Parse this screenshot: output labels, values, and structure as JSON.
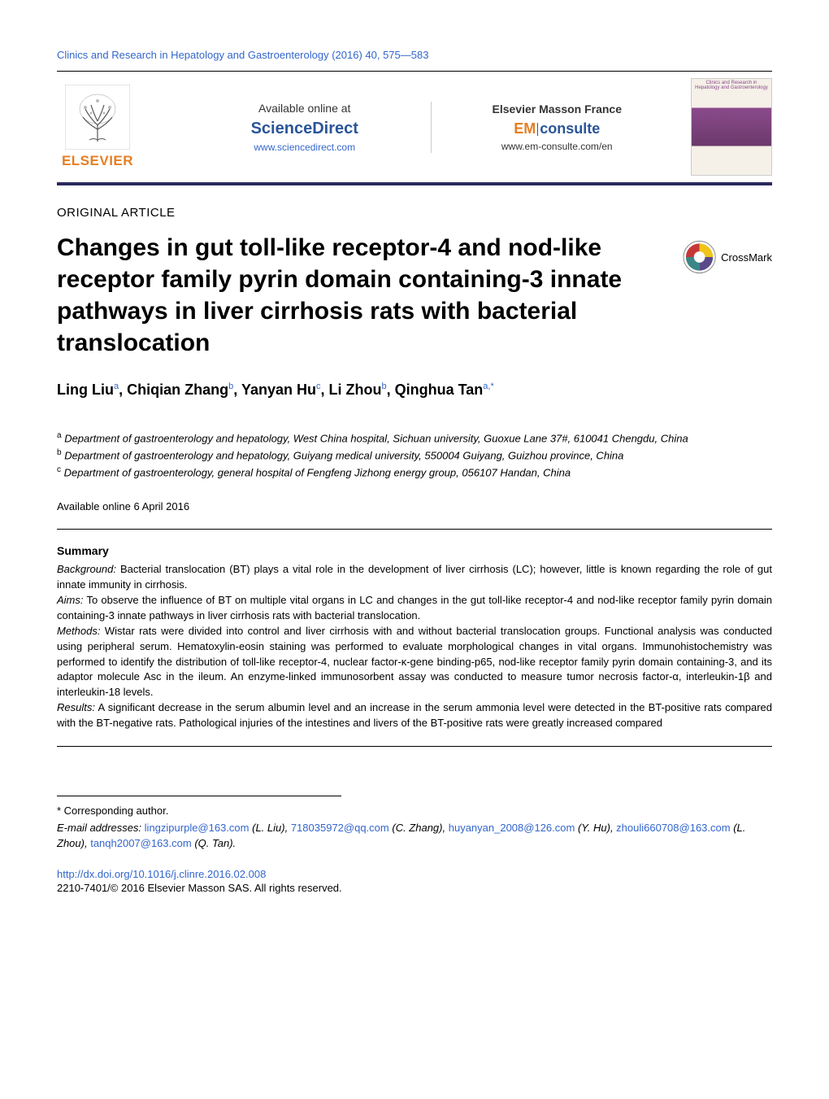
{
  "journal_header": "Clinics and Research in Hepatology and Gastroenterology (2016) 40, 575—583",
  "publisher": {
    "name": "ELSEVIER",
    "color": "#e67e22"
  },
  "availability": {
    "text": "Available online at",
    "platform": "ScienceDirect",
    "platform_color": "#2a5599",
    "url": "www.sciencedirect.com"
  },
  "masson": {
    "title": "Elsevier Masson France",
    "em": "EM",
    "consulte": "consulte",
    "url": "www.em-consulte.com/en"
  },
  "cover_title": "Clinics and Research in Hepatology and Gastroenterology",
  "article_type": "ORIGINAL ARTICLE",
  "article_title": "Changes in gut toll-like receptor-4 and nod-like receptor family pyrin domain containing-3 innate pathways in liver cirrhosis rats with bacterial translocation",
  "crossmark_label": "CrossMark",
  "authors": [
    {
      "name": "Ling Liu",
      "aff": "a"
    },
    {
      "name": "Chiqian Zhang",
      "aff": "b"
    },
    {
      "name": "Yanyan Hu",
      "aff": "c"
    },
    {
      "name": "Li Zhou",
      "aff": "b"
    },
    {
      "name": "Qinghua Tan",
      "aff": "a,*"
    }
  ],
  "affiliations": [
    {
      "sup": "a",
      "text": "Department of gastroenterology and hepatology, West China hospital, Sichuan university, Guoxue Lane 37#, 610041 Chengdu, China"
    },
    {
      "sup": "b",
      "text": "Department of gastroenterology and hepatology, Guiyang medical university, 550004 Guiyang, Guizhou province, China"
    },
    {
      "sup": "c",
      "text": "Department of gastroenterology, general hospital of Fengfeng Jizhong energy group, 056107 Handan, China"
    }
  ],
  "online_date": "Available online 6 April 2016",
  "summary_heading": "Summary",
  "abstract": {
    "background_label": "Background:",
    "background": " Bacterial translocation (BT) plays a vital role in the development of liver cirrhosis (LC); however, little is known regarding the role of gut innate immunity in cirrhosis.",
    "aims_label": "Aims:",
    "aims": " To observe the influence of BT on multiple vital organs in LC and changes in the gut toll-like receptor-4 and nod-like receptor family pyrin domain containing-3 innate pathways in liver cirrhosis rats with bacterial translocation.",
    "methods_label": "Methods:",
    "methods": " Wistar rats were divided into control and liver cirrhosis with and without bacterial translocation groups. Functional analysis was conducted using peripheral serum. Hematoxylin-eosin staining was performed to evaluate morphological changes in vital organs. Immunohistochemistry was performed to identify the distribution of toll-like receptor-4, nuclear factor-κ-gene binding-p65, nod-like receptor family pyrin domain containing-3, and its adaptor molecule Asc in the ileum. An enzyme-linked immunosorbent assay was conducted to measure tumor necrosis factor-α, interleukin-1β and interleukin-18 levels.",
    "results_label": "Results:",
    "results": " A significant decrease in the serum albumin level and an increase in the serum ammonia level were detected in the BT-positive rats compared with the BT-negative rats. Pathological injuries of the intestines and livers of the BT-positive rats were greatly increased compared"
  },
  "corresponding": "* Corresponding author.",
  "emails_label": "E-mail addresses:",
  "emails": [
    {
      "addr": "lingzipurple@163.com",
      "name": "(L. Liu)"
    },
    {
      "addr": "718035972@qq.com",
      "name": "(C. Zhang)"
    },
    {
      "addr": "huyanyan_2008@126.com",
      "name": "(Y. Hu)"
    },
    {
      "addr": "zhouli660708@163.com",
      "name": "(L. Zhou)"
    },
    {
      "addr": "tanqh2007@163.com",
      "name": "(Q. Tan)"
    }
  ],
  "doi": "http://dx.doi.org/10.1016/j.clinre.2016.02.008",
  "copyright": "2210-7401/© 2016 Elsevier Masson SAS. All rights reserved.",
  "colors": {
    "link": "#3366cc",
    "orange": "#e67e22",
    "navy": "#2a5599",
    "dark_navy": "#2a2a5e"
  },
  "crossmark_colors": {
    "tl": "#c83737",
    "tr": "#f0c419",
    "bl": "#3b8686",
    "br": "#5b4a8a"
  }
}
